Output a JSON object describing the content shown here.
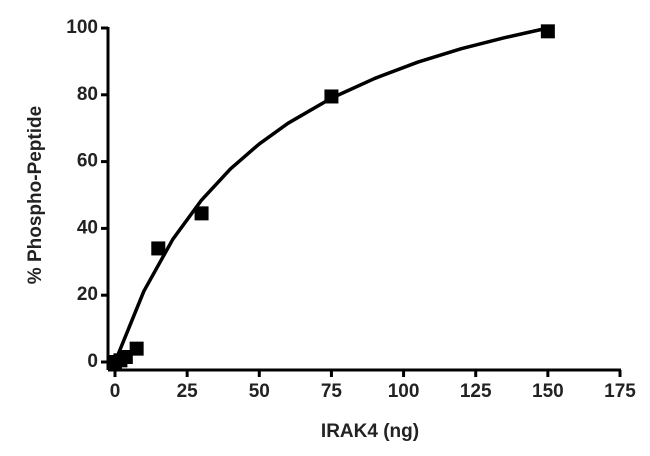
{
  "chart_data": {
    "type": "scatter",
    "x_label": "IRAK4 (ng)",
    "y_label": "% Phospho-Peptide",
    "color": "#000000",
    "points": {
      "x": [
        0,
        1.875,
        3.75,
        7.5,
        15,
        30,
        75,
        150
      ],
      "y": [
        0,
        0.5,
        1.5,
        4,
        34,
        44.5,
        79.5,
        99
      ]
    },
    "fit": {
      "x": [
        0,
        10,
        20,
        30,
        40,
        50,
        60,
        75,
        90,
        105,
        120,
        135,
        150
      ],
      "y": [
        0,
        21.2,
        36.7,
        48.5,
        57.8,
        65.3,
        71.5,
        79.0,
        84.9,
        89.8,
        93.8,
        97.1,
        100.0
      ]
    },
    "xlim": [
      0,
      175
    ],
    "ylim": [
      0,
      100
    ],
    "xticks": [
      0,
      25,
      50,
      75,
      100,
      125,
      150,
      175
    ],
    "yticks": [
      0,
      20,
      40,
      60,
      80,
      100
    ]
  }
}
